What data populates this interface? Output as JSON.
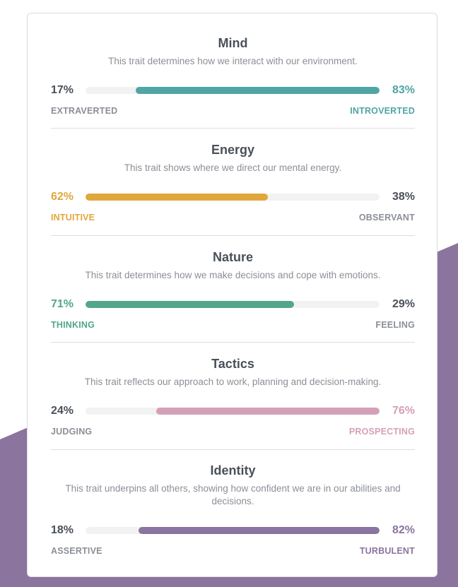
{
  "colors": {
    "mind": "#4fa6a4",
    "energy": "#e0a73d",
    "nature": "#52a68a",
    "tactics": "#d4a0b8",
    "identity": "#8b74a0",
    "neutral": "#4a5059",
    "muted": "#8b8f96",
    "background_shape": "#8b749e"
  },
  "traits": [
    {
      "key": "mind",
      "title": "Mind",
      "description": "This trait determines how we interact with our environment.",
      "left_percent": "17%",
      "right_percent": "83%",
      "left_label": "EXTRAVERTED",
      "right_label": "INTROVERTED",
      "dominant": "right",
      "value": 83
    },
    {
      "key": "energy",
      "title": "Energy",
      "description": "This trait shows where we direct our mental energy.",
      "left_percent": "62%",
      "right_percent": "38%",
      "left_label": "INTUITIVE",
      "right_label": "OBSERVANT",
      "dominant": "left",
      "value": 62
    },
    {
      "key": "nature",
      "title": "Nature",
      "description": "This trait determines how we make decisions and cope with emotions.",
      "left_percent": "71%",
      "right_percent": "29%",
      "left_label": "THINKING",
      "right_label": "FEELING",
      "dominant": "left",
      "value": 71
    },
    {
      "key": "tactics",
      "title": "Tactics",
      "description": "This trait reflects our approach to work, planning and decision-making.",
      "left_percent": "24%",
      "right_percent": "76%",
      "left_label": "JUDGING",
      "right_label": "PROSPECTING",
      "dominant": "right",
      "value": 76
    },
    {
      "key": "identity",
      "title": "Identity",
      "description": "This trait underpins all others, showing how confident we are in our abilities and decisions.",
      "left_percent": "18%",
      "right_percent": "82%",
      "left_label": "ASSERTIVE",
      "right_label": "TURBULENT",
      "dominant": "right",
      "value": 82
    }
  ]
}
